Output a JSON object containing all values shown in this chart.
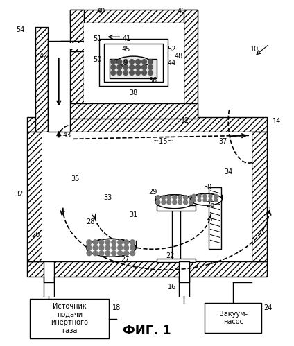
{
  "title": "ФИГ. 1",
  "bg_color": "#ffffff",
  "inert_gas_text": "Источник\nподачи\nинертного\nгаза",
  "vacuum_text": "Вакуум-\nнасос"
}
